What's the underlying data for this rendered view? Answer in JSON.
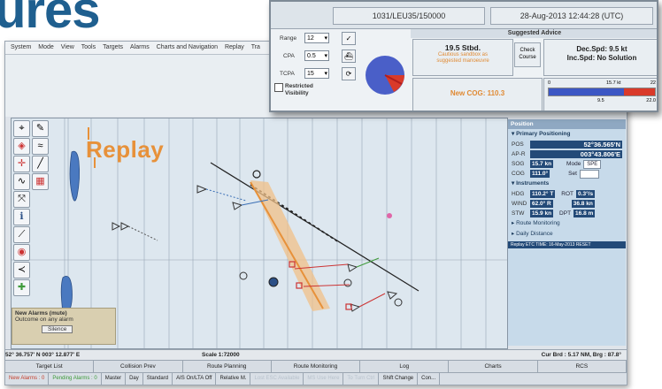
{
  "headline": "ures",
  "menubar": [
    "System",
    "Mode",
    "View",
    "Tools",
    "Targets",
    "Alarms",
    "Charts and Navigation",
    "Replay",
    "Tra"
  ],
  "chart": {
    "replay_label": "Replay",
    "alarm_title": "New Alarms (mute)",
    "alarm_sub": "Outcome on any alarm",
    "alarm_ok": "Silence"
  },
  "info_panel": {
    "header": "Position",
    "primary_title": "Primary Positioning",
    "pos_label": "POS",
    "pos_lat": "52°36.565'N",
    "ap_label": "AP-R",
    "pos_lon": "003°43.806'E",
    "sog_label": "SOG",
    "sog_value": "15.7 kn",
    "cog_label": "COG",
    "cog_value": "111.0°",
    "mode_label": "Mode",
    "mode_value": "SPE",
    "set_label": "Set",
    "instruments_title": "Instruments",
    "hdg_label": "HDG",
    "hdg_value": "110.2° T",
    "rot_label": "ROT",
    "rot_value": "0.3°/s",
    "wind_label": "WIND",
    "wind_value": "62.0° R",
    "wind_speed": "36.8 kn",
    "stw_label": "STW",
    "stw_value": "15.9 kn",
    "dpt_label": "DPT",
    "dpt_value": "16.8 m",
    "route_monitoring": "Route Monitoring",
    "daily_distance": "Daily Distance",
    "footer": "Replay ETC TIME: 16-May-2013 RESET"
  },
  "statusline": {
    "cursor": "52° 36.757' N  003° 12.877' E",
    "scale": "Scale 1:72000",
    "cursor_brg": "Cur Brd : 5.17 NM, Brg : 87.8°"
  },
  "navtabs": [
    "Target List",
    "Collision Prev",
    "Route Planning",
    "Route Monitoring",
    "Log",
    "Charts",
    "RCS"
  ],
  "bottombar": [
    {
      "label": "New Alarms : 0",
      "color": "red"
    },
    {
      "label": "Pending Alarms : 0",
      "color": "green"
    },
    {
      "label": "Master",
      "color": ""
    },
    {
      "label": "Day",
      "color": ""
    },
    {
      "label": "Standard",
      "color": ""
    },
    {
      "label": "AIS On/LTA Off",
      "color": ""
    },
    {
      "label": "Relative M.",
      "color": ""
    },
    {
      "label": "Lost ESC Available",
      "color": "faint"
    },
    {
      "label": "MS Use Here",
      "color": "faint"
    },
    {
      "label": "To Turn Ctrl",
      "color": "faint"
    },
    {
      "label": "Shift Change",
      "color": ""
    },
    {
      "label": "Con...",
      "color": ""
    }
  ],
  "popup": {
    "id": "1031/LEU35/150000",
    "datetime": "28-Aug-2013 12:44:28 (UTC)",
    "range_label": "Range",
    "range_value": "12",
    "cpa_label": "CPA",
    "cpa_value": "0.5",
    "tcpa_label": "TCPA",
    "tcpa_value": "15",
    "restricted_label": "Restricted Visibility",
    "advice_title": "Suggested Advice",
    "advice_speed": "19.5 Stbd.",
    "advice_sub1": "Cautious sandbox as",
    "advice_sub2": "suggested manoeuvre",
    "check_course": "Check Course",
    "new_cog": "New COG: 110.3",
    "dec_line1": "Dec.Spd: 9.5 kt",
    "dec_line2": "Inc.Spd: No Solution",
    "bar_left": "0",
    "bar_mid": "15.7 kt",
    "bar_right": "22",
    "bar_bottom1": "9.5",
    "bar_bottom2": "22.0",
    "bar_fraction": 0.71
  }
}
